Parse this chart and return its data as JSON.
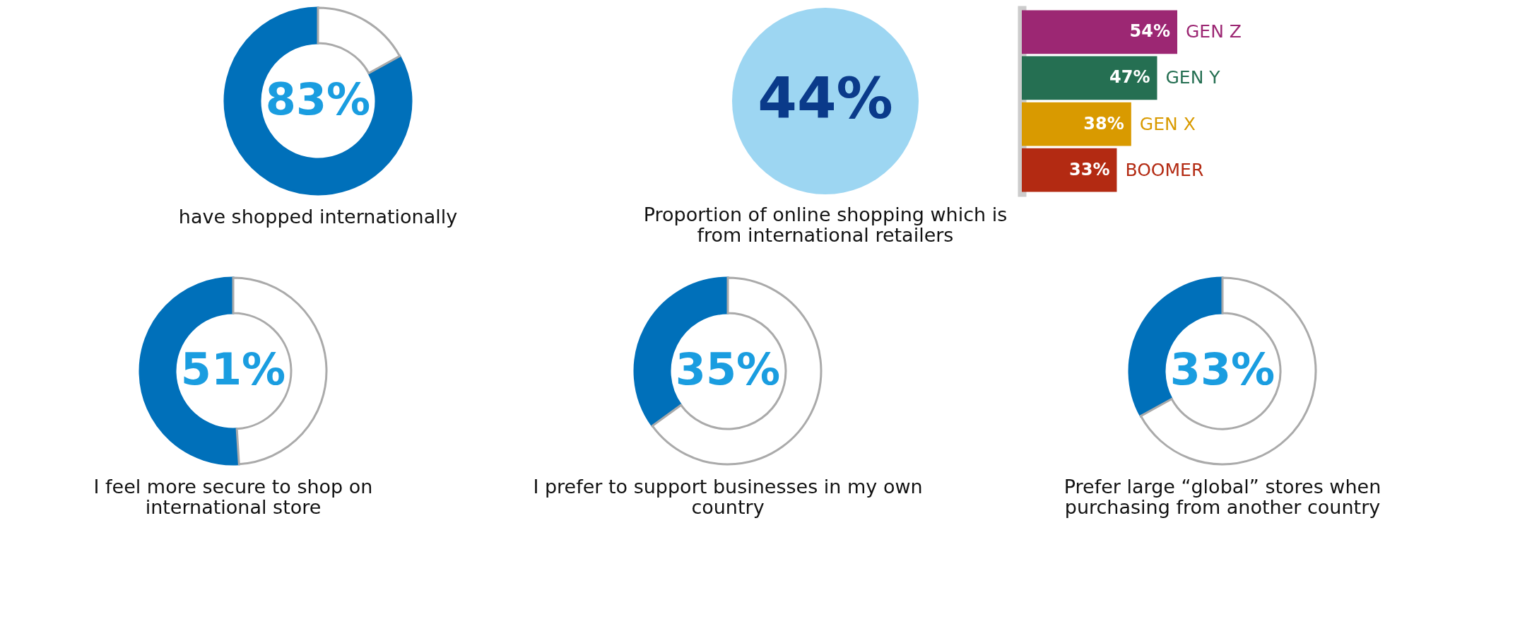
{
  "chart_data": [
    {
      "type": "donut",
      "categories": [
        null,
        null
      ],
      "values": [
        83,
        17
      ],
      "colors": [
        "#0070ba",
        "#ffffff"
      ],
      "value_labels": [
        "83%",
        null
      ],
      "title": "have shopped internationally"
    },
    {
      "type": "other",
      "color": "#9dd6f2",
      "annotations": [
        "44%"
      ],
      "title": "Proportion of online shopping which is from international retailers"
    },
    {
      "type": "bar",
      "orientation": "horizontal",
      "categories": [
        "GEN Z",
        "GEN Y",
        "GEN X",
        "BOOMER"
      ],
      "values": [
        54,
        47,
        38,
        33
      ],
      "colors": [
        "#9c2773",
        "#256f52",
        "#d99a00",
        "#b32a12"
      ],
      "value_labels": [
        "54%",
        "47%",
        "38%",
        "33%"
      ]
    },
    {
      "type": "donut",
      "categories": [
        null,
        null
      ],
      "values": [
        51,
        49
      ],
      "colors": [
        "#0070ba",
        "#ffffff"
      ],
      "value_labels": [
        "51%",
        null
      ],
      "title": "I feel more secure to shop on international store"
    },
    {
      "type": "donut",
      "categories": [
        null,
        null
      ],
      "values": [
        35,
        65
      ],
      "colors": [
        "#0070ba",
        "#ffffff"
      ],
      "value_labels": [
        "35%",
        null
      ],
      "title": "I prefer to support businesses in my own country"
    },
    {
      "type": "donut",
      "categories": [
        null,
        null
      ],
      "values": [
        33,
        67
      ],
      "colors": [
        "#0070ba",
        "#ffffff"
      ],
      "value_labels": [
        "33%",
        null
      ],
      "title": "Prefer large “global” stores when purchasing from another country"
    }
  ]
}
